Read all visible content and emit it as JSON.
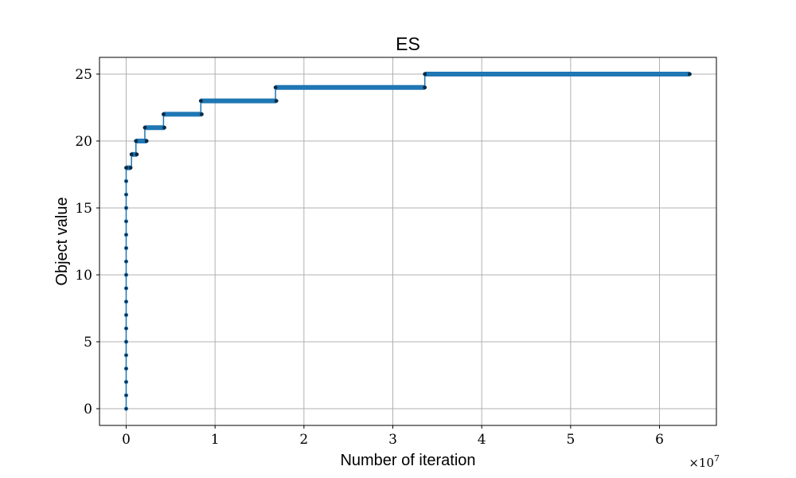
{
  "chart_data": {
    "type": "scatter",
    "title": "ES",
    "xlabel": "Number of iteration",
    "ylabel": "Object value",
    "x_multiplier_text": "×10",
    "x_multiplier_exp": "7",
    "xlim": [
      -0.3,
      6.64
    ],
    "ylim": [
      -1.25,
      26.25
    ],
    "x_ticks": [
      0,
      1,
      2,
      3,
      4,
      5,
      6
    ],
    "y_ticks": [
      0,
      5,
      10,
      15,
      20,
      25
    ],
    "grid": true,
    "colors": {
      "line": "#1f77b4",
      "marker": "#0b2a45",
      "grid": "#b0b0b0"
    },
    "series": [
      {
        "steps": [
          {
            "value": 18,
            "x_start": 0.0,
            "x_end": 0.05
          },
          {
            "value": 19,
            "x_start": 0.06,
            "x_end": 0.12
          },
          {
            "value": 20,
            "x_start": 0.11,
            "x_end": 0.23
          },
          {
            "value": 21,
            "x_start": 0.21,
            "x_end": 0.43
          },
          {
            "value": 22,
            "x_start": 0.42,
            "x_end": 0.85
          },
          {
            "value": 23,
            "x_start": 0.84,
            "x_end": 1.69
          },
          {
            "value": 24,
            "x_start": 1.68,
            "x_end": 3.36
          },
          {
            "value": 25,
            "x_start": 3.36,
            "x_end": 6.34
          }
        ],
        "initial_points": {
          "x": 0.0,
          "values": [
            0,
            1,
            2,
            3,
            4,
            5,
            6,
            7,
            8,
            9,
            10,
            11,
            12,
            13,
            14,
            15,
            16,
            17
          ]
        }
      }
    ]
  }
}
